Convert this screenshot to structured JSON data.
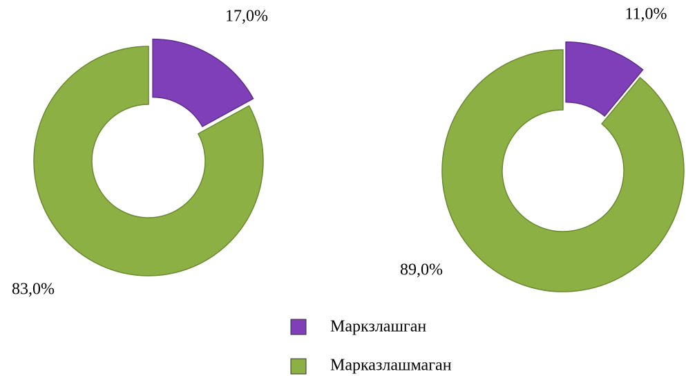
{
  "legend": {
    "categories": [
      "Маркзлашган",
      "Марказлашмаган"
    ],
    "colors": [
      "#7e3fb8",
      "#8db045"
    ]
  },
  "chart_data": [
    {
      "type": "donut",
      "values": [
        17,
        83
      ],
      "value_labels": [
        "17,0%",
        "83,0%"
      ]
    },
    {
      "type": "donut",
      "values": [
        11,
        89
      ],
      "value_labels": [
        "11,0%",
        "89,0%"
      ]
    }
  ]
}
